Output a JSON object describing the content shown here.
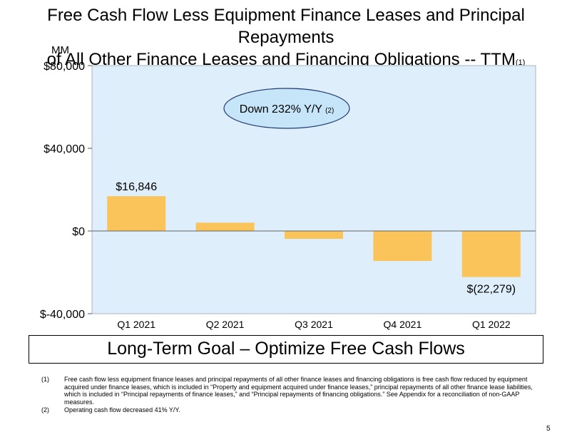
{
  "title_line1": "Free Cash Flow Less Equipment Finance Leases and Principal Repayments",
  "title_line2": "of All Other Finance Leases and Financing Obligations -- TTM",
  "title_footnote_ref": "(1)",
  "colors": {
    "bar": "#fbc45a",
    "plot_bg": "#deeefa",
    "plot_border": "#aab4c0",
    "callout_bg": "#c6e5f8",
    "callout_border": "#1f3b73"
  },
  "chart_data": {
    "type": "bar",
    "ylabel": "MM",
    "categories": [
      "Q1 2021",
      "Q2 2021",
      "Q3 2021",
      "Q4 2021",
      "Q1 2022"
    ],
    "values": [
      16846,
      4000,
      -3800,
      -14500,
      -22279
    ],
    "ylim": [
      -40000,
      80000
    ],
    "yticks": [
      80000,
      40000,
      0,
      -40000
    ],
    "ytick_labels": [
      "$80,000",
      "$40,000",
      "$0",
      "$-40,000"
    ],
    "data_labels": [
      {
        "index": 0,
        "text": "$16,846"
      },
      {
        "index": 4,
        "text": "$(22,279)"
      }
    ],
    "annotation": {
      "text": "Down 232% Y/Y",
      "ref": "(2)"
    },
    "grid": false,
    "legend": "none"
  },
  "goal": "Long-Term Goal – Optimize Free Cash Flows",
  "footnotes": [
    {
      "num": "(1)",
      "text": "Free cash flow less equipment finance leases and principal repayments of all other finance leases and financing obligations is free cash flow reduced by equipment acquired under finance leases, which is included in “Property and equipment acquired under finance leases,” principal repayments of all other finance lease liabilities, which is included in “Principal repayments of finance leases,” and “Principal repayments of financing obligations.” See Appendix for a reconciliation of non-GAAP measures."
    },
    {
      "num": "(2)",
      "text": "Operating cash flow decreased 41% Y/Y."
    }
  ],
  "page_number": "5"
}
